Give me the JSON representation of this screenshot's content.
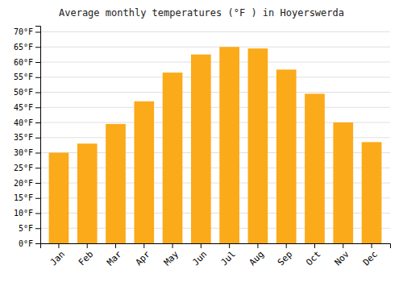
{
  "chart_data": {
    "type": "bar",
    "title": "Average monthly temperatures (°F ) in Hoyerswerda",
    "categories": [
      "Jan",
      "Feb",
      "Mar",
      "Apr",
      "May",
      "Jun",
      "Jul",
      "Aug",
      "Sep",
      "Oct",
      "Nov",
      "Dec"
    ],
    "values": [
      30,
      33,
      39.5,
      47,
      56.5,
      62.5,
      65,
      64.5,
      57.5,
      49.5,
      40,
      33.5
    ],
    "color": "#FBAA19",
    "ylim": [
      0,
      72
    ],
    "yticks": [
      {
        "value": 0,
        "label": "0°F"
      },
      {
        "value": 5,
        "label": "5°F"
      },
      {
        "value": 10,
        "label": "10°F"
      },
      {
        "value": 15,
        "label": "15°F"
      },
      {
        "value": 20,
        "label": "20°F"
      },
      {
        "value": 25,
        "label": "25°F"
      },
      {
        "value": 30,
        "label": "30°F"
      },
      {
        "value": 35,
        "label": "35°F"
      },
      {
        "value": 40,
        "label": "40°F"
      },
      {
        "value": 45,
        "label": "45°F"
      },
      {
        "value": 50,
        "label": "50°F"
      },
      {
        "value": 55,
        "label": "55°F"
      },
      {
        "value": 60,
        "label": "60°F"
      },
      {
        "value": 65,
        "label": "65°F"
      },
      {
        "value": 70,
        "label": "70°F"
      }
    ],
    "grid": true
  }
}
